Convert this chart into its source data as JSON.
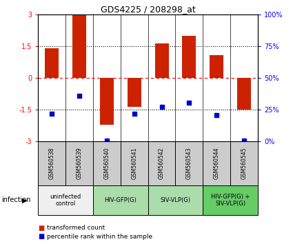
{
  "title": "GDS4225 / 208298_at",
  "samples": [
    "GSM560538",
    "GSM560539",
    "GSM560540",
    "GSM560541",
    "GSM560542",
    "GSM560543",
    "GSM560544",
    "GSM560545"
  ],
  "transformed_count": [
    1.4,
    3.0,
    -2.2,
    -1.35,
    1.65,
    2.0,
    1.1,
    -1.5
  ],
  "percentile_rank_mapped": [
    -1.7,
    -0.85,
    -2.95,
    -1.7,
    -1.35,
    -1.15,
    -1.75,
    -2.95
  ],
  "bar_color": "#cc2200",
  "dot_color": "#0000cc",
  "ylim": [
    -3,
    3
  ],
  "yticks_left": [
    -3,
    -1.5,
    0,
    1.5,
    3
  ],
  "yticks_right_pct": [
    0,
    25,
    50,
    75,
    100
  ],
  "groups": [
    {
      "label": "uninfected\ncontrol",
      "start": 0,
      "end": 2,
      "color": "#f0f0f0"
    },
    {
      "label": "HIV-GFP(G)",
      "start": 2,
      "end": 4,
      "color": "#aaddaa"
    },
    {
      "label": "SIV-VLP(G)",
      "start": 4,
      "end": 6,
      "color": "#aaddaa"
    },
    {
      "label": "HIV-GFP(G) +\nSIV-VLP(G)",
      "start": 6,
      "end": 8,
      "color": "#66cc66"
    }
  ],
  "sample_box_color": "#cccccc",
  "infection_label": "infection",
  "legend_items": [
    {
      "color": "#cc2200",
      "label": "transformed count"
    },
    {
      "color": "#0000cc",
      "label": "percentile rank within the sample"
    }
  ]
}
